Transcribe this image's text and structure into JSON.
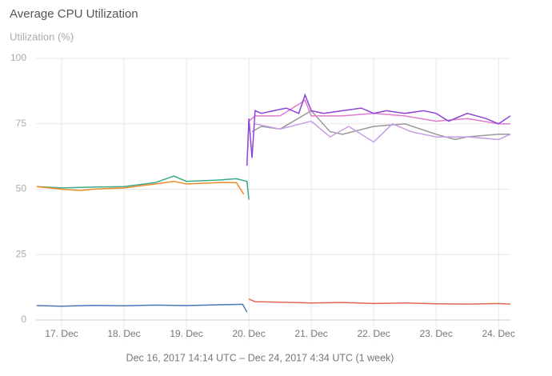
{
  "chart_data": {
    "type": "line",
    "title": "Average CPU Utilization",
    "y_axis_label": "Utilization (%)",
    "x_axis_label": "Dec 16, 2017 14:14 UTC – Dec 24, 2017 4:34 UTC (1 week)",
    "xlim": [
      16.59,
      24.19
    ],
    "xticks": [
      {
        "value": 17,
        "label": "17. Dec"
      },
      {
        "value": 18,
        "label": "18. Dec"
      },
      {
        "value": 19,
        "label": "19. Dec"
      },
      {
        "value": 20,
        "label": "20. Dec"
      },
      {
        "value": 21,
        "label": "21. Dec"
      },
      {
        "value": 22,
        "label": "22. Dec"
      },
      {
        "value": 23,
        "label": "23. Dec"
      },
      {
        "value": 24,
        "label": "24. Dec"
      }
    ],
    "ylim": [
      0,
      100
    ],
    "yticks": [
      0,
      25,
      50,
      75,
      100
    ],
    "grid": true,
    "series": [
      {
        "color": "#4a7ab5",
        "x": [
          16.6,
          17,
          17.5,
          18,
          18.5,
          19,
          19.5,
          19.9,
          19.97
        ],
        "values": [
          5.5,
          5.3,
          5.6,
          5.4,
          5.7,
          5.5,
          5.8,
          6,
          3
        ]
      },
      {
        "color": "#e0684f",
        "x": [
          20,
          20.1,
          20.5,
          21,
          21.5,
          22,
          22.5,
          23,
          23.5,
          24,
          24.19
        ],
        "values": [
          8,
          7,
          6.8,
          6.5,
          6.7,
          6.3,
          6.5,
          6.2,
          6.1,
          6.3,
          6.1
        ]
      },
      {
        "color": "#3aaa8a",
        "x": [
          16.6,
          17,
          17.5,
          18,
          18.5,
          18.8,
          19,
          19.5,
          19.8,
          19.97,
          20.0
        ],
        "values": [
          51,
          50.5,
          50.8,
          51,
          52.5,
          55,
          53,
          53.5,
          54,
          53,
          46
        ]
      },
      {
        "color": "#f08a2c",
        "x": [
          16.6,
          17,
          17.3,
          17.5,
          18,
          18.5,
          18.8,
          19,
          19.5,
          19.8,
          19.92
        ],
        "values": [
          51,
          50,
          49.5,
          50,
          50.5,
          52,
          53,
          52,
          52.5,
          52.5,
          48
        ]
      },
      {
        "color": "#999999",
        "x": [
          20.05,
          20.2,
          20.5,
          21,
          21.3,
          21.5,
          22,
          22.5,
          23,
          23.3,
          23.5,
          24,
          24.19
        ],
        "values": [
          72,
          74,
          73,
          80,
          72,
          71,
          74,
          75,
          71,
          69,
          70,
          71,
          71
        ]
      },
      {
        "color": "#c79ee6",
        "x": [
          20.1,
          20.5,
          21,
          21.3,
          21.6,
          22,
          22.3,
          22.6,
          23,
          23.5,
          24,
          24.19
        ],
        "values": [
          75,
          73,
          76,
          70,
          74,
          68,
          75,
          72,
          70,
          70,
          69,
          71
        ]
      },
      {
        "color": "#e07ad0",
        "x": [
          20.0,
          20.1,
          20.5,
          20.9,
          21,
          21.5,
          22,
          22.5,
          23,
          23.5,
          24,
          24.19
        ],
        "values": [
          76,
          78,
          78,
          84,
          78,
          78,
          79,
          78,
          76,
          77,
          75,
          75
        ]
      },
      {
        "color": "#8e44d6",
        "x": [
          19.97,
          20.0,
          20.05,
          20.1,
          20.2,
          20.4,
          20.6,
          20.8,
          20.9,
          21,
          21.2,
          21.5,
          21.8,
          22,
          22.2,
          22.5,
          22.8,
          23,
          23.2,
          23.5,
          23.8,
          24,
          24.19
        ],
        "values": [
          59,
          77,
          62,
          80,
          79,
          80,
          81,
          79,
          86,
          80,
          79,
          80,
          81,
          79,
          80,
          79,
          80,
          79,
          76,
          79,
          77,
          75,
          78
        ]
      }
    ]
  }
}
